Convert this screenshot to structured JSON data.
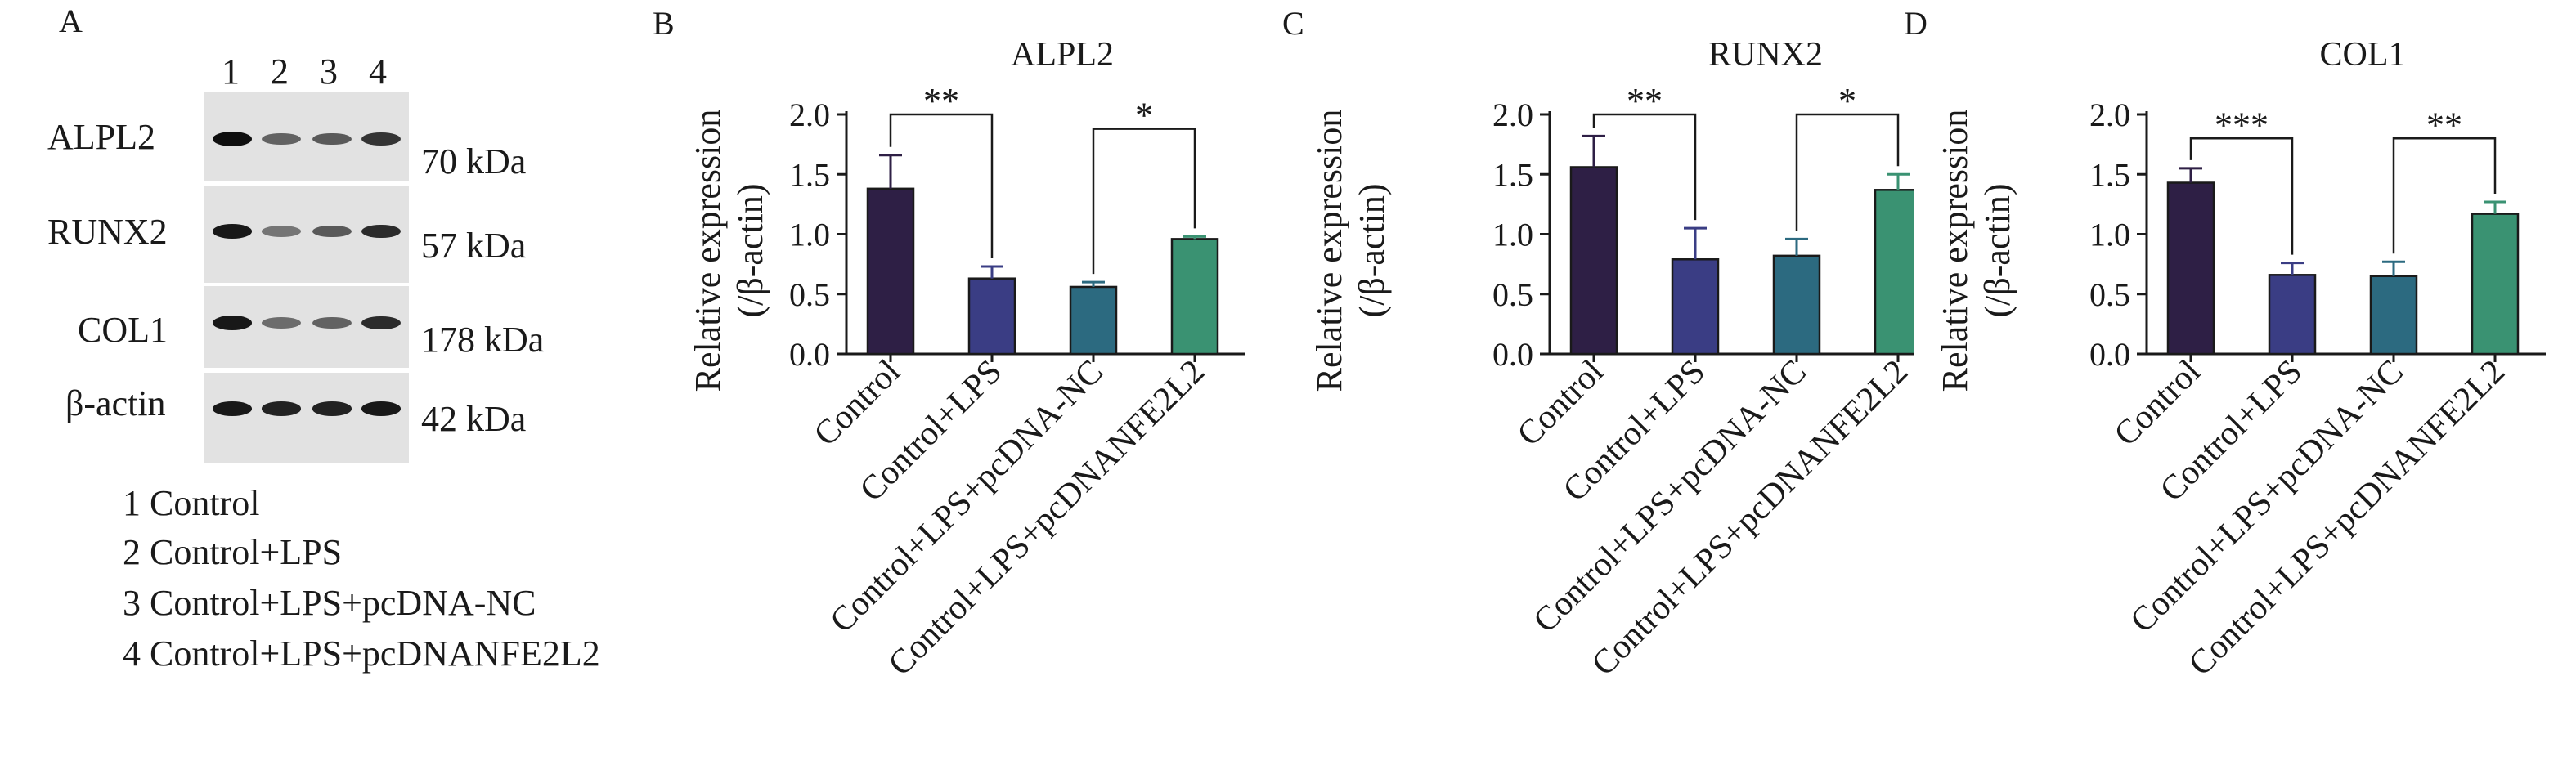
{
  "panel_a": {
    "letter": "A",
    "lane_numbers": [
      "1",
      "2",
      "3",
      "4"
    ],
    "blots": [
      {
        "protein": "ALPL2",
        "kda": "70 kDa",
        "band_intensity": [
          1.0,
          0.55,
          0.6,
          0.8
        ]
      },
      {
        "protein": "RUNX2",
        "kda": "57 kDa",
        "band_intensity": [
          0.95,
          0.45,
          0.6,
          0.85
        ]
      },
      {
        "protein": "COL1",
        "kda": "178 kDa",
        "band_intensity": [
          0.95,
          0.5,
          0.55,
          0.85
        ]
      },
      {
        "protein": "β-actin",
        "kda": "42 kDa",
        "band_intensity": [
          0.95,
          0.9,
          0.9,
          0.95
        ]
      }
    ],
    "legend": [
      "1 Control",
      "2 Control+LPS",
      "3 Control+LPS+pcDNA-NC",
      "4 Control+LPS+pcDNANFE2L2"
    ]
  },
  "colors": [
    "#2e1f45",
    "#3a3d84",
    "#2c6a80",
    "#3a9272"
  ],
  "chart_data": [
    {
      "panel": "B",
      "type": "bar",
      "title": "ALPL2",
      "ylabel": "Relative expression",
      "ylabel2": "(/β-actin)",
      "ylim": [
        0,
        2.0
      ],
      "yticks": [
        "0.0",
        "0.5",
        "1.0",
        "1.5",
        "2.0"
      ],
      "categories": [
        "Control",
        "Control+LPS",
        "Control+LPS+pcDNA-NC",
        "Control+LPS+pcDNANFE2L2"
      ],
      "values": [
        1.38,
        0.63,
        0.56,
        0.96
      ],
      "errors": [
        0.28,
        0.1,
        0.04,
        0.02
      ],
      "significance": [
        {
          "from": 0,
          "to": 1,
          "label": "**",
          "y": 2.0
        },
        {
          "from": 2,
          "to": 3,
          "label": "*",
          "y": 1.88
        }
      ]
    },
    {
      "panel": "C",
      "type": "bar",
      "title": "RUNX2",
      "ylabel": "Relative expression",
      "ylabel2": "(/β-actin)",
      "ylim": [
        0,
        2.0
      ],
      "yticks": [
        "0.0",
        "0.5",
        "1.0",
        "1.5",
        "2.0"
      ],
      "categories": [
        "Control",
        "Control+LPS",
        "Control+LPS+pcDNA-NC",
        "Control+LPS+pcDNANFE2L2"
      ],
      "values": [
        1.56,
        0.79,
        0.82,
        1.37
      ],
      "errors": [
        0.26,
        0.26,
        0.14,
        0.13
      ],
      "significance": [
        {
          "from": 0,
          "to": 1,
          "label": "**",
          "y": 2.0
        },
        {
          "from": 2,
          "to": 3,
          "label": "*",
          "y": 2.0
        }
      ]
    },
    {
      "panel": "D",
      "type": "bar",
      "title": "COL1",
      "ylabel": "Relative expression",
      "ylabel2": "(/β-actin)",
      "ylim": [
        0,
        2.0
      ],
      "yticks": [
        "0.0",
        "0.5",
        "1.0",
        "1.5",
        "2.0"
      ],
      "categories": [
        "Control",
        "Control+LPS",
        "Control+LPS+pcDNA-NC",
        "Control+LPS+pcDNANFE2L2"
      ],
      "values": [
        1.43,
        0.66,
        0.65,
        1.17
      ],
      "errors": [
        0.12,
        0.1,
        0.12,
        0.1
      ],
      "significance": [
        {
          "from": 0,
          "to": 1,
          "label": "***",
          "y": 1.8
        },
        {
          "from": 2,
          "to": 3,
          "label": "**",
          "y": 1.8
        }
      ]
    }
  ]
}
